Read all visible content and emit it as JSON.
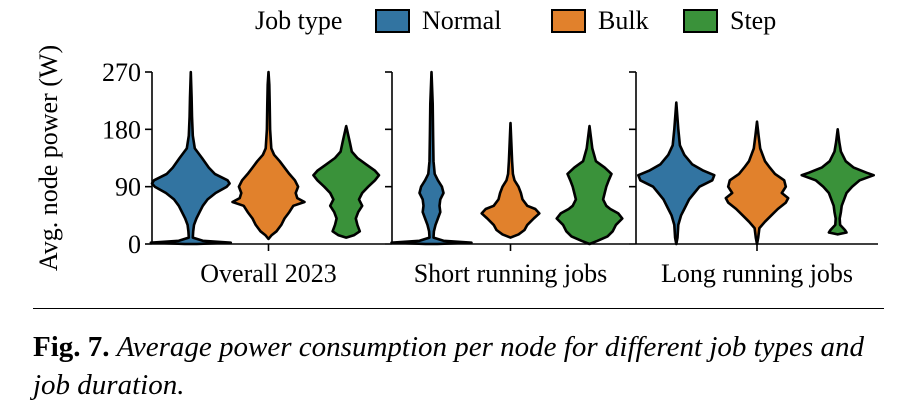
{
  "chart_data": {
    "type": "violin",
    "ylabel": "Avg. node power (W)",
    "ylim": [
      0,
      270
    ],
    "yticks": [
      0,
      90,
      180,
      270
    ],
    "legend": {
      "title": "Job type",
      "placement": "top",
      "entries": [
        {
          "name": "Normal",
          "color": "#3274a1"
        },
        {
          "name": "Bulk",
          "color": "#e1812c"
        },
        {
          "name": "Step",
          "color": "#3a923a"
        }
      ]
    },
    "panels": [
      {
        "label": "Overall 2023",
        "violins": [
          {
            "series": "Normal",
            "color": "#3274a1",
            "profile": [
              [
                0,
                0.15
              ],
              [
                2,
                1
              ],
              [
                5,
                0.3
              ],
              [
                10,
                0.05
              ],
              [
                20,
                0.06
              ],
              [
                30,
                0.08
              ],
              [
                40,
                0.14
              ],
              [
                50,
                0.22
              ],
              [
                60,
                0.3
              ],
              [
                70,
                0.42
              ],
              [
                80,
                0.62
              ],
              [
                90,
                0.9
              ],
              [
                95,
                0.97
              ],
              [
                100,
                0.92
              ],
              [
                110,
                0.6
              ],
              [
                120,
                0.45
              ],
              [
                135,
                0.28
              ],
              [
                150,
                0.1
              ],
              [
                170,
                0.05
              ],
              [
                200,
                0.03
              ],
              [
                230,
                0.02
              ],
              [
                270,
                0
              ]
            ]
          },
          {
            "series": "Bulk",
            "color": "#e1812c",
            "profile": [
              [
                8,
                0
              ],
              [
                14,
                0.08
              ],
              [
                20,
                0.2
              ],
              [
                30,
                0.32
              ],
              [
                40,
                0.4
              ],
              [
                50,
                0.52
              ],
              [
                60,
                0.62
              ],
              [
                66,
                0.9
              ],
              [
                72,
                0.72
              ],
              [
                80,
                0.68
              ],
              [
                90,
                0.74
              ],
              [
                100,
                0.66
              ],
              [
                110,
                0.52
              ],
              [
                120,
                0.4
              ],
              [
                130,
                0.28
              ],
              [
                140,
                0.14
              ],
              [
                150,
                0.07
              ],
              [
                180,
                0.04
              ],
              [
                220,
                0.03
              ],
              [
                250,
                0.02
              ],
              [
                270,
                0
              ]
            ]
          },
          {
            "series": "Step",
            "color": "#3a923a",
            "profile": [
              [
                10,
                0
              ],
              [
                14,
                0.2
              ],
              [
                20,
                0.34
              ],
              [
                30,
                0.28
              ],
              [
                40,
                0.24
              ],
              [
                50,
                0.3
              ],
              [
                60,
                0.4
              ],
              [
                70,
                0.32
              ],
              [
                80,
                0.4
              ],
              [
                90,
                0.55
              ],
              [
                100,
                0.72
              ],
              [
                108,
                0.82
              ],
              [
                115,
                0.72
              ],
              [
                125,
                0.5
              ],
              [
                135,
                0.28
              ],
              [
                145,
                0.14
              ],
              [
                160,
                0.09
              ],
              [
                185,
                0
              ]
            ]
          }
        ]
      },
      {
        "label": "Short running jobs",
        "violins": [
          {
            "series": "Normal",
            "color": "#3274a1",
            "profile": [
              [
                0,
                0.15
              ],
              [
                2,
                1
              ],
              [
                5,
                0.3
              ],
              [
                10,
                0.05
              ],
              [
                20,
                0.06
              ],
              [
                30,
                0.1
              ],
              [
                40,
                0.16
              ],
              [
                50,
                0.22
              ],
              [
                60,
                0.2
              ],
              [
                70,
                0.22
              ],
              [
                80,
                0.3
              ],
              [
                90,
                0.26
              ],
              [
                100,
                0.16
              ],
              [
                110,
                0.08
              ],
              [
                130,
                0.05
              ],
              [
                170,
                0.04
              ],
              [
                220,
                0.03
              ],
              [
                270,
                0
              ]
            ]
          },
          {
            "series": "Bulk",
            "color": "#e1812c",
            "profile": [
              [
                10,
                0
              ],
              [
                15,
                0.2
              ],
              [
                22,
                0.35
              ],
              [
                30,
                0.42
              ],
              [
                40,
                0.58
              ],
              [
                48,
                0.72
              ],
              [
                55,
                0.62
              ],
              [
                60,
                0.42
              ],
              [
                70,
                0.3
              ],
              [
                80,
                0.26
              ],
              [
                90,
                0.2
              ],
              [
                100,
                0.1
              ],
              [
                110,
                0.06
              ],
              [
                130,
                0.04
              ],
              [
                160,
                0.02
              ],
              [
                190,
                0
              ]
            ]
          },
          {
            "series": "Step",
            "color": "#3a923a",
            "profile": [
              [
                0,
                0
              ],
              [
                5,
                0.2
              ],
              [
                12,
                0.45
              ],
              [
                20,
                0.58
              ],
              [
                30,
                0.66
              ],
              [
                40,
                0.82
              ],
              [
                48,
                0.72
              ],
              [
                55,
                0.52
              ],
              [
                60,
                0.42
              ],
              [
                70,
                0.34
              ],
              [
                80,
                0.38
              ],
              [
                90,
                0.42
              ],
              [
                100,
                0.48
              ],
              [
                110,
                0.55
              ],
              [
                120,
                0.38
              ],
              [
                130,
                0.16
              ],
              [
                150,
                0.07
              ],
              [
                185,
                0
              ]
            ]
          }
        ]
      },
      {
        "label": "Long running jobs",
        "violins": [
          {
            "series": "Normal",
            "color": "#3274a1",
            "profile": [
              [
                0,
                0
              ],
              [
                10,
                0.03
              ],
              [
                30,
                0.05
              ],
              [
                45,
                0.12
              ],
              [
                55,
                0.2
              ],
              [
                70,
                0.32
              ],
              [
                80,
                0.45
              ],
              [
                90,
                0.58
              ],
              [
                100,
                0.9
              ],
              [
                108,
                0.95
              ],
              [
                115,
                0.68
              ],
              [
                125,
                0.4
              ],
              [
                140,
                0.2
              ],
              [
                155,
                0.09
              ],
              [
                180,
                0.05
              ],
              [
                222,
                0
              ]
            ]
          },
          {
            "series": "Bulk",
            "color": "#e1812c",
            "profile": [
              [
                0,
                0
              ],
              [
                10,
                0.03
              ],
              [
                25,
                0.06
              ],
              [
                35,
                0.2
              ],
              [
                45,
                0.36
              ],
              [
                55,
                0.52
              ],
              [
                65,
                0.72
              ],
              [
                72,
                0.78
              ],
              [
                80,
                0.62
              ],
              [
                90,
                0.72
              ],
              [
                100,
                0.68
              ],
              [
                110,
                0.45
              ],
              [
                120,
                0.32
              ],
              [
                130,
                0.2
              ],
              [
                150,
                0.08
              ],
              [
                170,
                0.04
              ],
              [
                192,
                0
              ]
            ]
          },
          {
            "series": "Step",
            "color": "#3a923a",
            "profile": [
              [
                15,
                0
              ],
              [
                18,
                0.22
              ],
              [
                22,
                0.18
              ],
              [
                30,
                0.06
              ],
              [
                40,
                0.05
              ],
              [
                50,
                0.08
              ],
              [
                60,
                0.1
              ],
              [
                70,
                0.16
              ],
              [
                80,
                0.22
              ],
              [
                90,
                0.36
              ],
              [
                100,
                0.55
              ],
              [
                108,
                0.9
              ],
              [
                112,
                0.72
              ],
              [
                120,
                0.4
              ],
              [
                130,
                0.2
              ],
              [
                145,
                0.08
              ],
              [
                160,
                0.04
              ],
              [
                180,
                0
              ]
            ]
          }
        ]
      }
    ]
  },
  "caption": {
    "label": "Fig. 7.",
    "text": "Average power consumption per node for different job types and job duration."
  }
}
